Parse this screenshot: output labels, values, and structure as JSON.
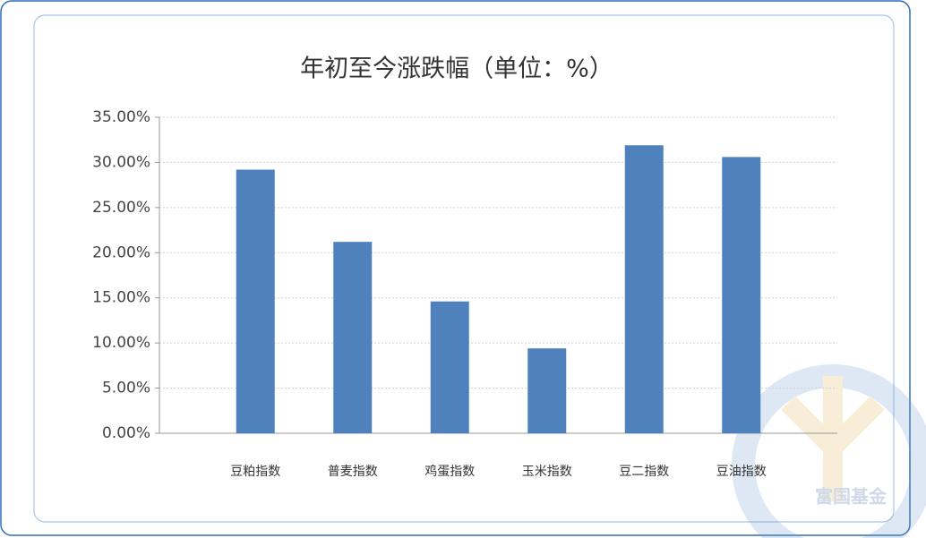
{
  "chart_data": {
    "type": "bar",
    "title": "年初至今涨跌幅（单位：%）",
    "categories": [
      "豆粕指数",
      "普麦指数",
      "鸡蛋指数",
      "玉米指数",
      "豆二指数",
      "豆油指数"
    ],
    "values": [
      29.2,
      21.2,
      14.6,
      9.4,
      31.9,
      30.6
    ],
    "color": "#4f81bd",
    "ylim": [
      0,
      35
    ],
    "yticks": [
      {
        "value": 0,
        "label": "0.00%"
      },
      {
        "value": 5,
        "label": "5.00%"
      },
      {
        "value": 10,
        "label": "10.00%"
      },
      {
        "value": 15,
        "label": "15.00%"
      },
      {
        "value": 20,
        "label": "20.00%"
      },
      {
        "value": 25,
        "label": "25.00%"
      },
      {
        "value": 30,
        "label": "30.00%"
      },
      {
        "value": 35,
        "label": "35.00%"
      }
    ],
    "grid": true,
    "watermark": "富国基金"
  }
}
